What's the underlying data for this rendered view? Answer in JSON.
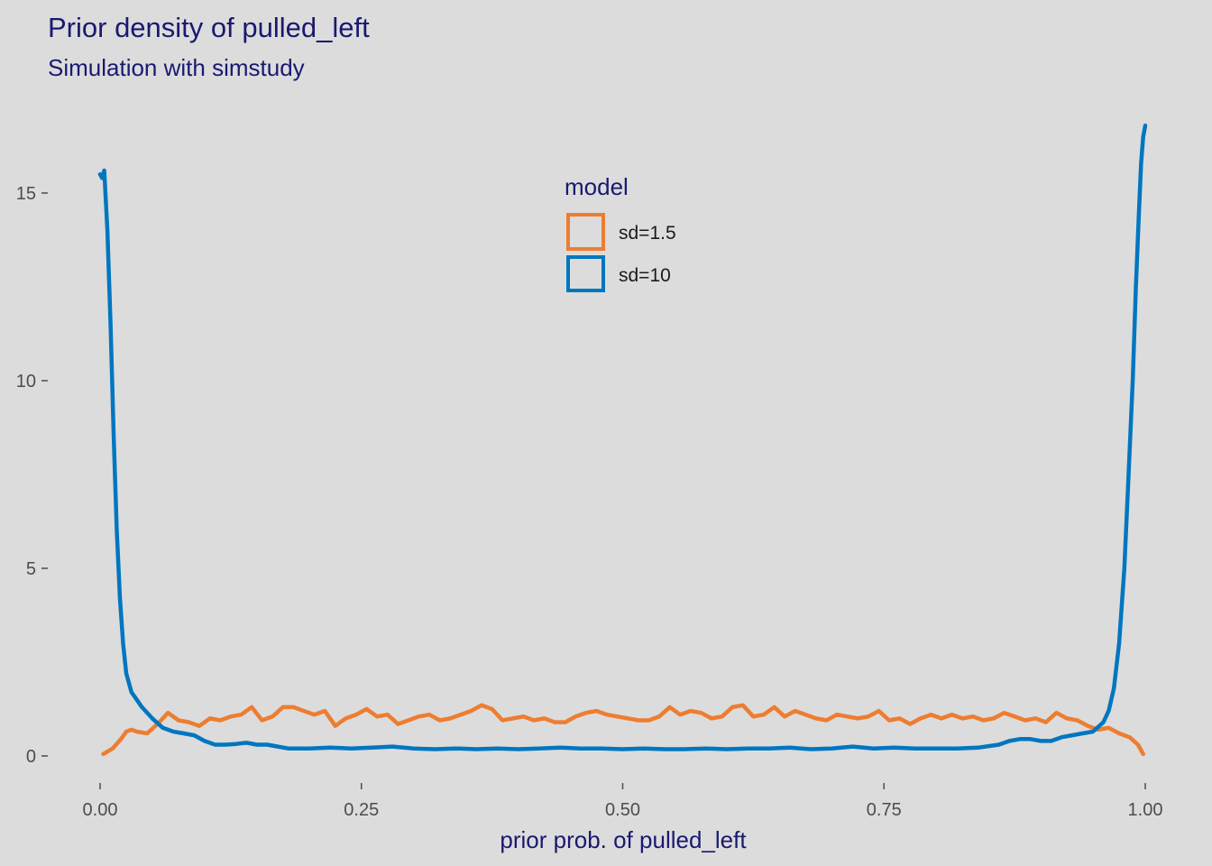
{
  "colors": {
    "background": "#dcdcdc",
    "title": "#191970",
    "axis_text": "#4d4d4d",
    "series_sd15": "#ed7d31",
    "series_sd10": "#0076c0"
  },
  "chart_data": {
    "type": "line",
    "title": "Prior density of pulled_left",
    "subtitle": "Simulation with simstudy",
    "xlabel": "prior prob. of pulled_left",
    "ylabel": "",
    "xlim": [
      0,
      1
    ],
    "ylim": [
      -0.7,
      17.7
    ],
    "x_ticks": [
      0,
      0.25,
      0.5,
      0.75,
      1
    ],
    "x_tick_labels": [
      "0.00",
      "0.25",
      "0.50",
      "0.75",
      "1.00"
    ],
    "y_ticks": [
      0,
      5,
      10,
      15
    ],
    "y_tick_labels": [
      "0",
      "5",
      "10",
      "15"
    ],
    "grid": false,
    "legend": {
      "title": "model",
      "position": "top-center",
      "entries": [
        "sd=1.5",
        "sd=10"
      ]
    },
    "series": [
      {
        "name": "sd=1.5",
        "color": "#ed7d31",
        "x": [
          0.003,
          0.012,
          0.02,
          0.025,
          0.03,
          0.035,
          0.045,
          0.055,
          0.065,
          0.075,
          0.085,
          0.095,
          0.105,
          0.115,
          0.125,
          0.135,
          0.145,
          0.155,
          0.165,
          0.175,
          0.185,
          0.195,
          0.205,
          0.215,
          0.225,
          0.235,
          0.245,
          0.255,
          0.265,
          0.275,
          0.285,
          0.295,
          0.305,
          0.315,
          0.325,
          0.335,
          0.345,
          0.355,
          0.365,
          0.375,
          0.385,
          0.395,
          0.405,
          0.415,
          0.425,
          0.435,
          0.445,
          0.455,
          0.465,
          0.475,
          0.485,
          0.495,
          0.505,
          0.515,
          0.525,
          0.535,
          0.545,
          0.555,
          0.565,
          0.575,
          0.585,
          0.595,
          0.605,
          0.615,
          0.625,
          0.635,
          0.645,
          0.655,
          0.665,
          0.675,
          0.685,
          0.695,
          0.705,
          0.715,
          0.725,
          0.735,
          0.745,
          0.755,
          0.765,
          0.775,
          0.785,
          0.795,
          0.805,
          0.815,
          0.825,
          0.835,
          0.845,
          0.855,
          0.865,
          0.875,
          0.885,
          0.895,
          0.905,
          0.915,
          0.925,
          0.935,
          0.945,
          0.955,
          0.965,
          0.975,
          0.985,
          0.993,
          0.998
        ],
        "values": [
          0.05,
          0.2,
          0.45,
          0.65,
          0.7,
          0.65,
          0.6,
          0.85,
          1.15,
          0.95,
          0.9,
          0.8,
          1.0,
          0.95,
          1.05,
          1.1,
          1.3,
          0.95,
          1.05,
          1.3,
          1.3,
          1.2,
          1.1,
          1.2,
          0.8,
          1.0,
          1.1,
          1.25,
          1.05,
          1.1,
          0.85,
          0.95,
          1.05,
          1.1,
          0.95,
          1.0,
          1.1,
          1.2,
          1.35,
          1.25,
          0.95,
          1.0,
          1.05,
          0.95,
          1.0,
          0.9,
          0.9,
          1.05,
          1.15,
          1.2,
          1.1,
          1.05,
          1.0,
          0.95,
          0.95,
          1.05,
          1.3,
          1.1,
          1.2,
          1.15,
          1.0,
          1.05,
          1.3,
          1.35,
          1.05,
          1.1,
          1.3,
          1.05,
          1.2,
          1.1,
          1.0,
          0.95,
          1.1,
          1.05,
          1.0,
          1.05,
          1.2,
          0.95,
          1.0,
          0.85,
          1.0,
          1.1,
          1.0,
          1.1,
          1.0,
          1.05,
          0.95,
          1.0,
          1.15,
          1.05,
          0.95,
          1.0,
          0.9,
          1.15,
          1.0,
          0.95,
          0.8,
          0.7,
          0.75,
          0.6,
          0.5,
          0.3,
          0.05
        ]
      },
      {
        "name": "sd=10",
        "color": "#0076c0",
        "x": [
          0.0,
          0.002,
          0.004,
          0.007,
          0.01,
          0.013,
          0.016,
          0.019,
          0.022,
          0.025,
          0.03,
          0.035,
          0.04,
          0.05,
          0.06,
          0.07,
          0.08,
          0.09,
          0.1,
          0.11,
          0.12,
          0.13,
          0.14,
          0.15,
          0.16,
          0.17,
          0.18,
          0.19,
          0.2,
          0.22,
          0.24,
          0.26,
          0.28,
          0.3,
          0.32,
          0.34,
          0.36,
          0.38,
          0.4,
          0.42,
          0.44,
          0.46,
          0.48,
          0.5,
          0.52,
          0.54,
          0.56,
          0.58,
          0.6,
          0.62,
          0.64,
          0.66,
          0.68,
          0.7,
          0.72,
          0.74,
          0.76,
          0.78,
          0.8,
          0.82,
          0.84,
          0.86,
          0.87,
          0.88,
          0.89,
          0.9,
          0.91,
          0.92,
          0.93,
          0.94,
          0.95,
          0.96,
          0.965,
          0.97,
          0.975,
          0.98,
          0.984,
          0.988,
          0.991,
          0.994,
          0.996,
          0.998,
          1.0
        ],
        "values": [
          15.5,
          15.4,
          15.6,
          14.0,
          11.5,
          8.5,
          6.0,
          4.2,
          3.0,
          2.2,
          1.7,
          1.5,
          1.3,
          1.0,
          0.75,
          0.65,
          0.6,
          0.55,
          0.4,
          0.3,
          0.3,
          0.32,
          0.35,
          0.3,
          0.3,
          0.25,
          0.2,
          0.2,
          0.2,
          0.22,
          0.2,
          0.22,
          0.25,
          0.2,
          0.18,
          0.2,
          0.18,
          0.2,
          0.18,
          0.2,
          0.22,
          0.2,
          0.2,
          0.18,
          0.2,
          0.18,
          0.18,
          0.2,
          0.18,
          0.2,
          0.2,
          0.22,
          0.18,
          0.2,
          0.25,
          0.2,
          0.22,
          0.2,
          0.2,
          0.2,
          0.22,
          0.3,
          0.4,
          0.45,
          0.45,
          0.4,
          0.4,
          0.5,
          0.55,
          0.6,
          0.65,
          0.9,
          1.2,
          1.8,
          3.0,
          5.0,
          7.5,
          10.0,
          12.5,
          14.5,
          15.8,
          16.5,
          16.8
        ]
      }
    ]
  }
}
